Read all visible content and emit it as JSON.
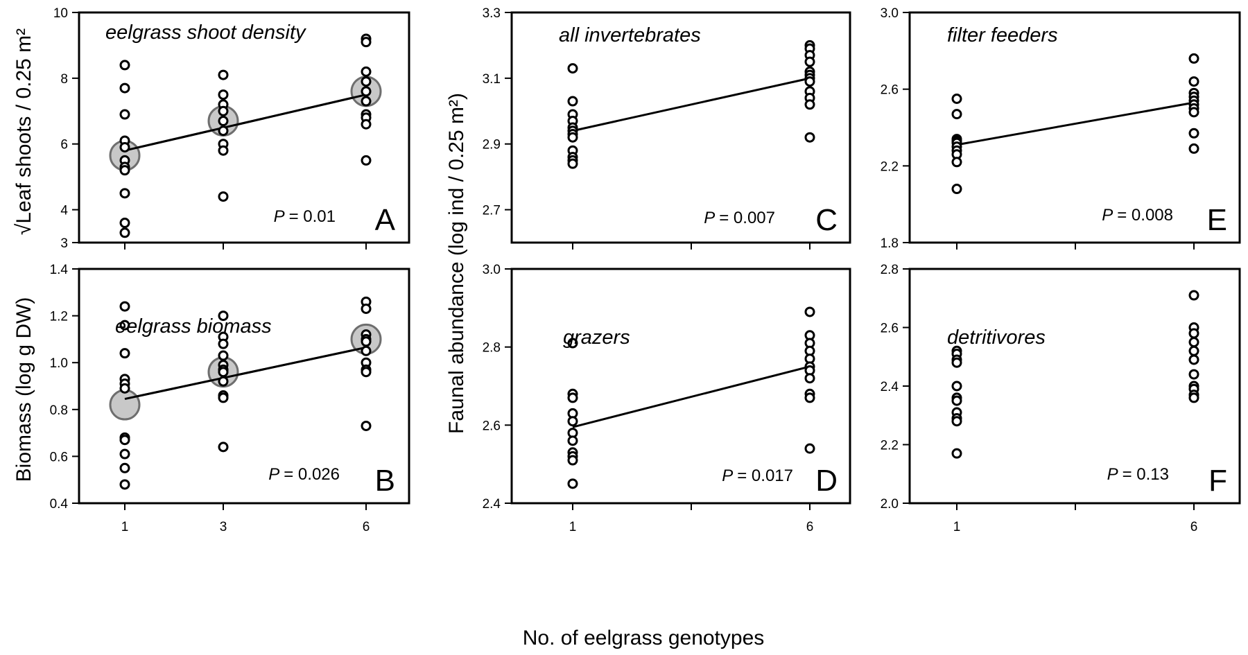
{
  "figure": {
    "xlabel": "No. of eelgrass genotypes",
    "ylabel_left_top": "Leaf shoots / 0.25 m²",
    "ylabel_left_bottom": "Biomass (log g DW)",
    "ylabel_middle": "Faunal abundance (log ind / 0.25 m²)"
  },
  "chart_data": [
    {
      "id": "A",
      "type": "scatter",
      "title": "eelgrass shoot density",
      "panel_label": "A",
      "p_prefix": "P",
      "p_value": "= 0.01",
      "ylabel": "√Leaf shoots / 0.25 m²",
      "xlabel": "No. of eelgrass genotypes",
      "x_categories": [
        1,
        3,
        6
      ],
      "ylim": [
        3,
        10
      ],
      "yticks": [
        3,
        4,
        6,
        8,
        10
      ],
      "ytick_labels": [
        "3",
        "4",
        "6",
        "8",
        "10"
      ],
      "xtick_labels": [],
      "points": {
        "1": [
          8.4,
          7.7,
          6.9,
          6.1,
          5.9,
          5.5,
          5.3,
          5.2,
          4.5,
          3.6,
          3.3
        ],
        "3": [
          8.1,
          7.5,
          7.2,
          7.0,
          6.7,
          6.4,
          6.0,
          5.8,
          4.4
        ],
        "6": [
          9.2,
          9.1,
          8.2,
          7.9,
          7.6,
          7.3,
          6.9,
          6.8,
          6.6,
          5.5
        ]
      },
      "means": {
        "1": 5.65,
        "3": 6.7,
        "6": 7.6
      },
      "fit_line": [
        [
          1,
          5.8
        ],
        [
          6,
          7.5
        ]
      ]
    },
    {
      "id": "B",
      "type": "scatter",
      "title": "eelgrass biomass",
      "panel_label": "B",
      "p_prefix": "P",
      "p_value": "= 0.026",
      "ylabel": "Biomass (log g DW)",
      "xlabel": "No. of eelgrass genotypes",
      "x_categories": [
        1,
        3,
        6
      ],
      "ylim": [
        0.4,
        1.4
      ],
      "yticks": [
        0.4,
        0.6,
        0.8,
        1.0,
        1.2,
        1.4
      ],
      "ytick_labels": [
        "0.4",
        "0.6",
        "0.8",
        "1.0",
        "1.2",
        "1.4"
      ],
      "xtick_labels": [
        "1",
        "3",
        "6"
      ],
      "points": {
        "1": [
          1.24,
          1.16,
          1.04,
          0.93,
          0.91,
          0.89,
          0.68,
          0.67,
          0.61,
          0.55,
          0.48
        ],
        "3": [
          1.2,
          1.11,
          1.08,
          1.03,
          0.99,
          0.97,
          0.96,
          0.92,
          0.86,
          0.85,
          0.64
        ],
        "6": [
          1.26,
          1.23,
          1.12,
          1.1,
          1.09,
          1.05,
          1.0,
          0.97,
          0.96,
          0.73
        ]
      },
      "means": {
        "1": 0.82,
        "3": 0.96,
        "6": 1.1
      },
      "fit_line": [
        [
          1,
          0.845
        ],
        [
          6,
          1.065
        ]
      ]
    },
    {
      "id": "C",
      "type": "scatter",
      "title": "all invertebrates",
      "panel_label": "C",
      "p_prefix": "P",
      "p_value": "= 0.007",
      "ylabel": "Faunal abundance (log ind / 0.25 m²)",
      "xlabel": "No. of eelgrass genotypes",
      "x_categories": [
        1,
        6
      ],
      "ylim": [
        2.6,
        3.3
      ],
      "yticks": [
        2.7,
        2.9,
        3.1,
        3.3
      ],
      "ytick_labels": [
        "2.7",
        "2.9",
        "3.1",
        "3.3"
      ],
      "xtick_labels": [],
      "points": {
        "1": [
          3.13,
          3.03,
          2.99,
          2.97,
          2.95,
          2.94,
          2.93,
          2.92,
          2.88,
          2.86,
          2.85,
          2.84
        ],
        "6": [
          3.2,
          3.19,
          3.17,
          3.15,
          3.12,
          3.11,
          3.1,
          3.09,
          3.06,
          3.04,
          3.02,
          2.92
        ]
      },
      "means": {},
      "fit_line": [
        [
          1,
          2.94
        ],
        [
          6,
          3.1
        ]
      ]
    },
    {
      "id": "D",
      "type": "scatter",
      "title": "grazers",
      "panel_label": "D",
      "p_prefix": "P",
      "p_value": "= 0.017",
      "ylabel": "Faunal abundance (log ind / 0.25 m²)",
      "xlabel": "No. of eelgrass genotypes",
      "x_categories": [
        1,
        6
      ],
      "ylim": [
        2.4,
        3.0
      ],
      "yticks": [
        2.4,
        2.6,
        2.8,
        3.0
      ],
      "ytick_labels": [
        "2.4",
        "2.6",
        "2.8",
        "3.0"
      ],
      "xtick_labels": [
        "1",
        "6"
      ],
      "points": {
        "1": [
          2.81,
          2.68,
          2.67,
          2.63,
          2.61,
          2.58,
          2.56,
          2.53,
          2.52,
          2.51,
          2.45
        ],
        "6": [
          2.89,
          2.83,
          2.81,
          2.79,
          2.77,
          2.75,
          2.74,
          2.72,
          2.68,
          2.67,
          2.54
        ]
      },
      "means": {},
      "fit_line": [
        [
          1,
          2.595
        ],
        [
          6,
          2.75
        ]
      ]
    },
    {
      "id": "E",
      "type": "scatter",
      "title": "filter feeders",
      "panel_label": "E",
      "p_prefix": "P",
      "p_value": "= 0.008",
      "ylabel": "Faunal abundance (log ind / 0.25 m²)",
      "xlabel": "No. of eelgrass genotypes",
      "x_categories": [
        1,
        6
      ],
      "ylim": [
        1.8,
        3.0
      ],
      "yticks": [
        1.8,
        2.2,
        2.6,
        3.0
      ],
      "ytick_labels": [
        "1.8",
        "2.2",
        "2.6",
        "3.0"
      ],
      "xtick_labels": [],
      "points": {
        "1": [
          2.55,
          2.47,
          2.34,
          2.33,
          2.32,
          2.3,
          2.28,
          2.26,
          2.22,
          2.08
        ],
        "6": [
          2.76,
          2.64,
          2.58,
          2.56,
          2.54,
          2.52,
          2.5,
          2.48,
          2.37,
          2.29
        ]
      },
      "means": {},
      "fit_line": [
        [
          1,
          2.31
        ],
        [
          6,
          2.53
        ]
      ]
    },
    {
      "id": "F",
      "type": "scatter",
      "title": "detritivores",
      "panel_label": "F",
      "p_prefix": "P",
      "p_value": "= 0.13",
      "ylabel": "Faunal abundance (log ind / 0.25 m²)",
      "xlabel": "No. of eelgrass genotypes",
      "x_categories": [
        1,
        6
      ],
      "ylim": [
        2.0,
        2.8
      ],
      "yticks": [
        2.0,
        2.2,
        2.4,
        2.6,
        2.8
      ],
      "ytick_labels": [
        "2.0",
        "2.2",
        "2.4",
        "2.6",
        "2.8"
      ],
      "xtick_labels": [
        "1",
        "6"
      ],
      "points": {
        "1": [
          2.52,
          2.51,
          2.49,
          2.48,
          2.4,
          2.36,
          2.35,
          2.31,
          2.29,
          2.28,
          2.17
        ],
        "6": [
          2.71,
          2.6,
          2.58,
          2.55,
          2.52,
          2.49,
          2.44,
          2.4,
          2.39,
          2.37,
          2.36
        ]
      },
      "means": {},
      "fit_line": null
    }
  ]
}
